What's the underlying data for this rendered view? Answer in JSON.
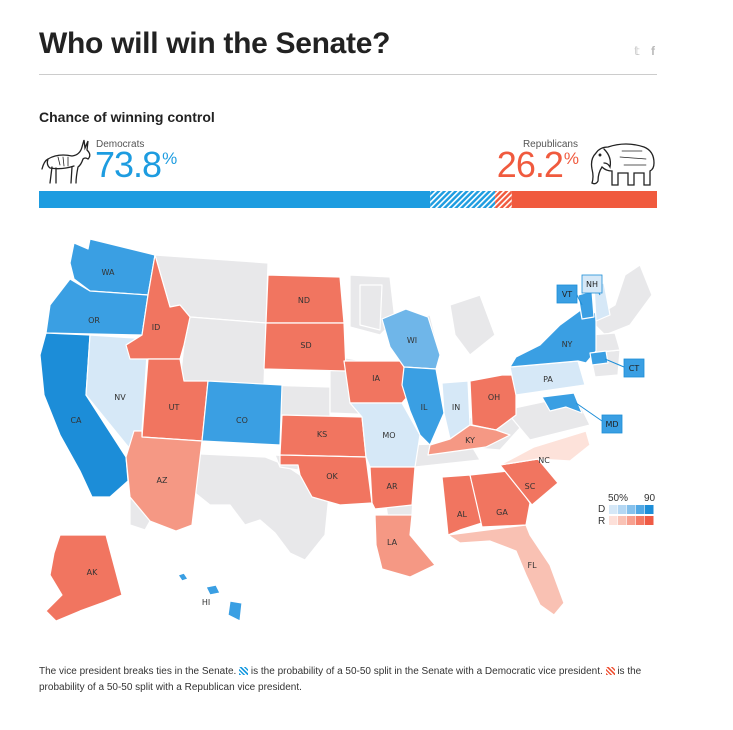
{
  "header": {
    "title": "Who will win the Senate?",
    "share": {
      "twitter_icon": "twitter-icon",
      "twitter_glyph": "𝕥",
      "facebook_icon": "facebook-icon",
      "facebook_glyph": "f"
    }
  },
  "control": {
    "subtitle": "Chance of winning control",
    "democrats": {
      "label": "Democrats",
      "value": "73.8",
      "unit": "%",
      "mascot": "donkey-icon",
      "color": "#1d9ce0"
    },
    "republicans": {
      "label": "Republicans",
      "value": "26.2",
      "unit": "%",
      "mascot": "elephant-icon",
      "color": "#f05a3e"
    },
    "bar": {
      "dem_share": 0.738,
      "dem_tie_share": 0.105,
      "rep_tie_share": 0.027
    }
  },
  "map": {
    "states": [
      {
        "abbr": "WA",
        "party": "D",
        "strength": 4
      },
      {
        "abbr": "OR",
        "party": "D",
        "strength": 4
      },
      {
        "abbr": "CA",
        "party": "D",
        "strength": 5
      },
      {
        "abbr": "NV",
        "party": "D",
        "strength": 1
      },
      {
        "abbr": "ID",
        "party": "R",
        "strength": 4
      },
      {
        "abbr": "UT",
        "party": "R",
        "strength": 4
      },
      {
        "abbr": "AZ",
        "party": "R",
        "strength": 3
      },
      {
        "abbr": "CO",
        "party": "D",
        "strength": 4
      },
      {
        "abbr": "ND",
        "party": "R",
        "strength": 4
      },
      {
        "abbr": "SD",
        "party": "R",
        "strength": 4
      },
      {
        "abbr": "KS",
        "party": "R",
        "strength": 4
      },
      {
        "abbr": "OK",
        "party": "R",
        "strength": 4
      },
      {
        "abbr": "IA",
        "party": "R",
        "strength": 4
      },
      {
        "abbr": "MO",
        "party": "D",
        "strength": 1
      },
      {
        "abbr": "AR",
        "party": "R",
        "strength": 4
      },
      {
        "abbr": "LA",
        "party": "R",
        "strength": 3
      },
      {
        "abbr": "WI",
        "party": "D",
        "strength": 3
      },
      {
        "abbr": "IL",
        "party": "D",
        "strength": 4
      },
      {
        "abbr": "IN",
        "party": "D",
        "strength": 1
      },
      {
        "abbr": "OH",
        "party": "R",
        "strength": 4
      },
      {
        "abbr": "KY",
        "party": "R",
        "strength": 3
      },
      {
        "abbr": "AL",
        "party": "R",
        "strength": 4
      },
      {
        "abbr": "GA",
        "party": "R",
        "strength": 4
      },
      {
        "abbr": "SC",
        "party": "R",
        "strength": 4
      },
      {
        "abbr": "FL",
        "party": "R",
        "strength": 2
      },
      {
        "abbr": "NC",
        "party": "R",
        "strength": 1
      },
      {
        "abbr": "PA",
        "party": "D",
        "strength": 1
      },
      {
        "abbr": "NY",
        "party": "D",
        "strength": 4
      },
      {
        "abbr": "VT",
        "party": "D",
        "strength": 4
      },
      {
        "abbr": "NH",
        "party": "D",
        "strength": 1
      },
      {
        "abbr": "CT",
        "party": "D",
        "strength": 4
      },
      {
        "abbr": "MD",
        "party": "D",
        "strength": 4
      },
      {
        "abbr": "AK",
        "party": "R",
        "strength": 4
      },
      {
        "abbr": "HI",
        "party": "D",
        "strength": 4
      }
    ],
    "callout_states": [
      "VT",
      "NH",
      "CT",
      "MD"
    ]
  },
  "legend": {
    "low_label": "50%",
    "high_label": "90",
    "dem_row_label": "D",
    "rep_row_label": "R",
    "dem_scale": [
      "#d6e8f7",
      "#b4d7f3",
      "#86c1ec",
      "#52a9e5",
      "#1d8ed8"
    ],
    "rep_scale": [
      "#fde0d9",
      "#f9c2b5",
      "#f7a08f",
      "#f47a65",
      "#ef5b45"
    ]
  },
  "colors": {
    "neutral_state": "#e8e8ea",
    "border": "#ffffff",
    "dem": [
      "#d6e8f7",
      "#b4d7f3",
      "#6fb6e9",
      "#3a9fe3",
      "#1c8dd8"
    ],
    "rep": [
      "#fde2da",
      "#f9c1b3",
      "#f59884",
      "#f17560",
      "#ee5a44"
    ]
  },
  "footnote": {
    "part1": "The vice president breaks ties in the Senate.",
    "part2": "is the probability of a 50-50 split in the Senate with a Democratic vice president.",
    "part3": "is the probability of a 50-50 split with a Republican vice president."
  }
}
